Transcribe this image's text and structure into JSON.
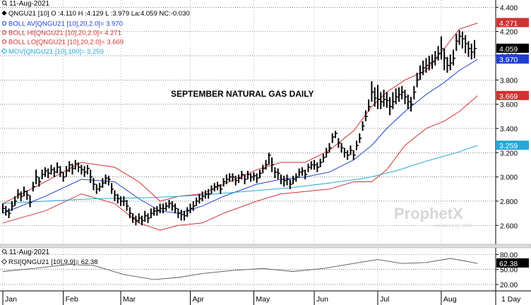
{
  "header": {
    "date": "11-Aug-2021",
    "quote": "QNGU21 [10] O :4.110 H :4.129 L :3.979 La:4.059 NC:-0.030",
    "legend": [
      {
        "text": "BOLL AV[QNGU21 [10],20,2.0]= 3.970",
        "color": "#1f3fd1",
        "marker": "circle"
      },
      {
        "text": "BOLL HI[QNGU21 [10],20,2.0]= 4.271",
        "color": "#d23232",
        "marker": "circle"
      },
      {
        "text": "BOLL LO[QNGU21 [10],20,2.0]= 3.669",
        "color": "#d23232",
        "marker": "circle"
      },
      {
        "text": "MOV[QNGU21 [10],100]= 3.259",
        "color": "#24a8d8",
        "marker": "diamond"
      }
    ]
  },
  "chart_title": "SEPTEMBER NATURAL GAS DAILY",
  "watermark": {
    "brand": "ProphetX",
    "sub": "powered by DTN"
  },
  "rsi_panel": {
    "date": "11-Aug-2021",
    "label": "RSI[QNGU21 [10],9,9]= 62.38"
  },
  "x_axis": {
    "months": [
      "Jan",
      "Feb",
      "Mar",
      "Apr",
      "May",
      "Jun",
      "Jul",
      "Aug"
    ],
    "period": "1 Day"
  },
  "colors": {
    "price": "#000000",
    "boll_hi": "#d23232",
    "boll_lo": "#d23232",
    "boll_av": "#1f3fd1",
    "mov": "#24a8d8",
    "rsi": "#555555",
    "plot_bg": "#ffffff",
    "grid": "#333333"
  },
  "chart_data": [
    {
      "type": "line",
      "title": "SEPTEMBER NATURAL GAS DAILY",
      "y_ticks": [
        "4.400",
        "4.200",
        "4.000",
        "3.800",
        "3.600",
        "3.400",
        "3.200",
        "3.000",
        "2.800",
        "2.600"
      ],
      "ylim": [
        2.45,
        4.46
      ],
      "grid": true,
      "current_labels": [
        {
          "value": 4.271,
          "text": "4.271",
          "bg": "#d23232",
          "fg": "#ffffff"
        },
        {
          "value": 4.059,
          "text": "4.059",
          "bg": "#000000",
          "fg": "#ffffff"
        },
        {
          "value": 3.97,
          "text": "3.970",
          "bg": "#1f3fd1",
          "fg": "#ffffff"
        },
        {
          "value": 3.669,
          "text": "3.669",
          "bg": "#d23232",
          "fg": "#ffffff"
        },
        {
          "value": 3.259,
          "text": "3.259",
          "bg": "#24a8d8",
          "fg": "#ffffff"
        }
      ],
      "x_period": "2021-01-04 to 2021-08-11, daily",
      "series": [
        {
          "key": "price",
          "style": "ohlc",
          "close": [
            2.74,
            2.72,
            2.7,
            2.76,
            2.8,
            2.86,
            2.84,
            2.88,
            2.85,
            2.79,
            2.92,
            3.0,
            2.96,
            3.02,
            3.05,
            3.03,
            3.06,
            3.04,
            3.08,
            3.04,
            3.0,
            3.05,
            3.1,
            3.07,
            3.11,
            3.08,
            3.06,
            3.04,
            3.07,
            3.0,
            2.94,
            2.9,
            2.92,
            2.95,
            2.99,
            2.98,
            2.9,
            2.85,
            2.82,
            2.8,
            2.8,
            2.76,
            2.7,
            2.66,
            2.64,
            2.66,
            2.64,
            2.68,
            2.66,
            2.7,
            2.72,
            2.72,
            2.74,
            2.74,
            2.76,
            2.78,
            2.76,
            2.74,
            2.7,
            2.69,
            2.68,
            2.72,
            2.74,
            2.76,
            2.8,
            2.82,
            2.84,
            2.86,
            2.86,
            2.9,
            2.92,
            2.93,
            2.9,
            2.96,
            2.98,
            3.0,
            3.0,
            2.97,
            2.99,
            3.02,
            2.98,
            3.02,
            3.0,
            3.01,
            2.99,
            3.03,
            3.07,
            3.1,
            3.18,
            3.1,
            3.04,
            3.03,
            2.98,
            2.97,
            2.98,
            2.94,
            2.98,
            3.0,
            3.04,
            3.05,
            3.02,
            3.08,
            3.1,
            3.1,
            3.08,
            3.12,
            3.16,
            3.2,
            3.24,
            3.33,
            3.36,
            3.28,
            3.24,
            3.2,
            3.18,
            3.22,
            3.18,
            3.26,
            3.32,
            3.42,
            3.5,
            3.58,
            3.7,
            3.65,
            3.64,
            3.62,
            3.64,
            3.63,
            3.58,
            3.62,
            3.66,
            3.68,
            3.7,
            3.66,
            3.62,
            3.6,
            3.7,
            3.8,
            3.86,
            3.9,
            3.92,
            3.94,
            3.95,
            3.98,
            4.02,
            4.06,
            3.98,
            3.92,
            3.94,
            3.98,
            4.12,
            4.16,
            4.14,
            4.1,
            4.06,
            4.03,
            4.06
          ],
          "high": [
            2.78,
            2.76,
            2.74,
            2.8,
            2.84,
            2.9,
            2.88,
            2.92,
            2.89,
            2.85,
            2.96,
            3.06,
            3.0,
            3.06,
            3.08,
            3.07,
            3.1,
            3.08,
            3.12,
            3.09,
            3.04,
            3.09,
            3.13,
            3.11,
            3.14,
            3.12,
            3.1,
            3.09,
            3.1,
            3.06,
            2.99,
            2.94,
            2.95,
            2.99,
            3.02,
            3.01,
            2.95,
            2.89,
            2.86,
            2.84,
            2.84,
            2.81,
            2.75,
            2.7,
            2.68,
            2.7,
            2.68,
            2.72,
            2.7,
            2.74,
            2.75,
            2.76,
            2.78,
            2.78,
            2.79,
            2.81,
            2.8,
            2.78,
            2.74,
            2.73,
            2.72,
            2.75,
            2.78,
            2.8,
            2.83,
            2.86,
            2.88,
            2.89,
            2.9,
            2.93,
            2.95,
            2.96,
            2.94,
            2.99,
            3.02,
            3.03,
            3.03,
            3.01,
            3.02,
            3.05,
            3.02,
            3.05,
            3.03,
            3.04,
            3.03,
            3.06,
            3.1,
            3.14,
            3.2,
            3.16,
            3.08,
            3.07,
            3.02,
            3.01,
            3.02,
            2.98,
            3.01,
            3.03,
            3.07,
            3.08,
            3.06,
            3.11,
            3.13,
            3.14,
            3.12,
            3.15,
            3.19,
            3.24,
            3.28,
            3.36,
            3.38,
            3.32,
            3.28,
            3.24,
            3.22,
            3.26,
            3.22,
            3.3,
            3.36,
            3.46,
            3.55,
            3.64,
            3.79,
            3.74,
            3.76,
            3.7,
            3.72,
            3.7,
            3.66,
            3.7,
            3.73,
            3.74,
            3.75,
            3.72,
            3.68,
            3.66,
            3.75,
            3.86,
            3.92,
            3.96,
            3.98,
            4.0,
            4.01,
            4.04,
            4.08,
            4.16,
            4.06,
            3.99,
            4.01,
            4.05,
            4.18,
            4.21,
            4.2,
            4.17,
            4.12,
            4.1,
            4.13
          ],
          "low": [
            2.7,
            2.68,
            2.66,
            2.72,
            2.76,
            2.82,
            2.8,
            2.84,
            2.81,
            2.75,
            2.88,
            2.94,
            2.92,
            2.98,
            3.0,
            2.99,
            3.02,
            3.0,
            3.03,
            3.0,
            2.96,
            3.0,
            3.04,
            3.02,
            3.06,
            3.04,
            3.02,
            3.0,
            3.02,
            2.95,
            2.89,
            2.86,
            2.88,
            2.91,
            2.94,
            2.93,
            2.86,
            2.8,
            2.78,
            2.76,
            2.76,
            2.72,
            2.66,
            2.62,
            2.6,
            2.62,
            2.6,
            2.63,
            2.62,
            2.66,
            2.68,
            2.68,
            2.7,
            2.7,
            2.72,
            2.74,
            2.72,
            2.7,
            2.66,
            2.64,
            2.64,
            2.67,
            2.7,
            2.72,
            2.76,
            2.78,
            2.8,
            2.82,
            2.82,
            2.86,
            2.88,
            2.89,
            2.86,
            2.92,
            2.94,
            2.96,
            2.96,
            2.93,
            2.95,
            2.98,
            2.94,
            2.98,
            2.96,
            2.97,
            2.95,
            2.99,
            3.03,
            3.06,
            3.1,
            3.04,
            2.99,
            2.98,
            2.94,
            2.92,
            2.93,
            2.9,
            2.94,
            2.96,
            3.0,
            3.01,
            2.98,
            3.04,
            3.06,
            3.06,
            3.04,
            3.08,
            3.12,
            3.16,
            3.2,
            3.28,
            3.32,
            3.24,
            3.2,
            3.16,
            3.14,
            3.18,
            3.14,
            3.22,
            3.28,
            3.38,
            3.46,
            3.54,
            3.62,
            3.58,
            3.56,
            3.56,
            3.58,
            3.57,
            3.51,
            3.56,
            3.6,
            3.62,
            3.64,
            3.6,
            3.56,
            3.54,
            3.64,
            3.74,
            3.8,
            3.84,
            3.86,
            3.88,
            3.89,
            3.92,
            3.96,
            3.97,
            3.88,
            3.86,
            3.88,
            3.92,
            4.04,
            4.09,
            4.06,
            4.02,
            3.99,
            3.97,
            3.98
          ]
        },
        {
          "key": "boll_hi",
          "style": "line",
          "points": [
            [
              0,
              2.78
            ],
            [
              14,
              2.96
            ],
            [
              26,
              3.12
            ],
            [
              37,
              3.08
            ],
            [
              45,
              2.96
            ],
            [
              52,
              2.8
            ],
            [
              58,
              2.84
            ],
            [
              66,
              2.86
            ],
            [
              73,
              2.94
            ],
            [
              84,
              3.06
            ],
            [
              92,
              3.12
            ],
            [
              100,
              3.12
            ],
            [
              108,
              3.22
            ],
            [
              116,
              3.38
            ],
            [
              122,
              3.58
            ],
            [
              127,
              3.7
            ],
            [
              133,
              3.8
            ],
            [
              140,
              3.88
            ],
            [
              146,
              4.06
            ],
            [
              151,
              4.22
            ],
            [
              157,
              4.27
            ]
          ]
        },
        {
          "key": "boll_lo",
          "style": "line",
          "points": [
            [
              0,
              2.62
            ],
            [
              14,
              2.72
            ],
            [
              26,
              2.86
            ],
            [
              37,
              2.78
            ],
            [
              45,
              2.62
            ],
            [
              52,
              2.56
            ],
            [
              58,
              2.6
            ],
            [
              66,
              2.62
            ],
            [
              73,
              2.7
            ],
            [
              84,
              2.8
            ],
            [
              92,
              2.86
            ],
            [
              100,
              2.88
            ],
            [
              108,
              2.9
            ],
            [
              116,
              2.96
            ],
            [
              122,
              2.96
            ],
            [
              127,
              3.06
            ],
            [
              133,
              3.26
            ],
            [
              140,
              3.4
            ],
            [
              146,
              3.46
            ],
            [
              151,
              3.54
            ],
            [
              157,
              3.67
            ]
          ]
        },
        {
          "key": "boll_av",
          "style": "line",
          "points": [
            [
              0,
              2.7
            ],
            [
              14,
              2.84
            ],
            [
              26,
              2.98
            ],
            [
              37,
              2.96
            ],
            [
              45,
              2.82
            ],
            [
              52,
              2.72
            ],
            [
              58,
              2.7
            ],
            [
              66,
              2.76
            ],
            [
              73,
              2.84
            ],
            [
              84,
              2.94
            ],
            [
              92,
              2.98
            ],
            [
              100,
              3.0
            ],
            [
              108,
              3.04
            ],
            [
              116,
              3.14
            ],
            [
              122,
              3.26
            ],
            [
              127,
              3.4
            ],
            [
              133,
              3.54
            ],
            [
              140,
              3.68
            ],
            [
              146,
              3.78
            ],
            [
              151,
              3.88
            ],
            [
              157,
              3.97
            ]
          ]
        },
        {
          "key": "mov",
          "style": "line",
          "points": [
            [
              0,
              2.78
            ],
            [
              14,
              2.8
            ],
            [
              30,
              2.82
            ],
            [
              50,
              2.83
            ],
            [
              66,
              2.85
            ],
            [
              80,
              2.88
            ],
            [
              95,
              2.91
            ],
            [
              108,
              2.95
            ],
            [
              120,
              2.99
            ],
            [
              130,
              3.05
            ],
            [
              140,
              3.13
            ],
            [
              150,
              3.2
            ],
            [
              157,
              3.26
            ]
          ]
        }
      ]
    },
    {
      "type": "line",
      "title": "RSI[QNGU21 [10],9,9]",
      "y_ticks": [
        "80.00",
        "50.00",
        "20.00"
      ],
      "ylim": [
        10,
        92
      ],
      "current": 62.38,
      "series": [
        {
          "key": "rsi",
          "points": [
            [
              0,
              46
            ],
            [
              10,
              52
            ],
            [
              22,
              60
            ],
            [
              30,
              58
            ],
            [
              40,
              40
            ],
            [
              50,
              30
            ],
            [
              58,
              34
            ],
            [
              66,
              42
            ],
            [
              76,
              48
            ],
            [
              86,
              52
            ],
            [
              96,
              46
            ],
            [
              106,
              52
            ],
            [
              116,
              62
            ],
            [
              124,
              70
            ],
            [
              132,
              62
            ],
            [
              140,
              64
            ],
            [
              148,
              72
            ],
            [
              152,
              68
            ],
            [
              157,
              62
            ]
          ]
        }
      ]
    }
  ]
}
